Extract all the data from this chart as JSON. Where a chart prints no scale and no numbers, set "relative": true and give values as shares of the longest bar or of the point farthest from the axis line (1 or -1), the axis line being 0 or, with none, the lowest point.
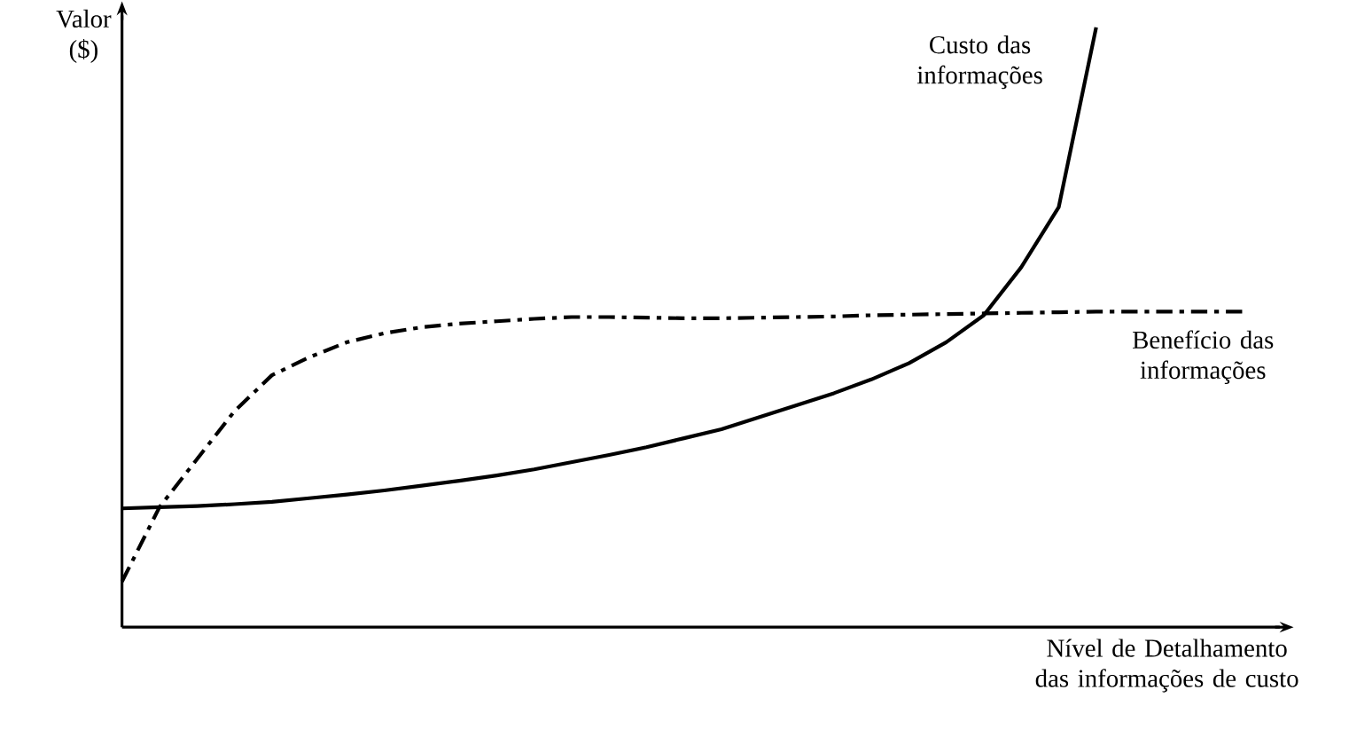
{
  "chart_data": {
    "type": "line",
    "relative": true,
    "marker": "none",
    "xlabel": "Nível de Detalhamento das informações de custo",
    "ylabel": "Valor ($)",
    "categories": [
      null,
      null,
      null,
      null,
      null,
      null,
      null,
      null,
      null,
      null,
      null,
      null,
      null,
      null,
      null,
      null,
      null,
      null,
      null,
      null,
      null,
      null,
      null,
      null,
      null,
      null,
      null,
      null,
      null,
      null,
      null
    ],
    "series": [
      {
        "name": "Custo das informações",
        "color": "#000000",
        "line_style": "solid",
        "values": [
          0.198,
          0.2,
          0.202,
          0.205,
          0.209,
          0.215,
          0.221,
          0.228,
          0.236,
          0.244,
          0.253,
          0.263,
          0.275,
          0.287,
          0.3,
          0.315,
          0.33,
          0.35,
          0.37,
          0.39,
          0.413,
          0.44,
          0.475,
          0.52,
          0.6,
          0.7,
          1.0,
          null,
          null,
          null,
          null
        ]
      },
      {
        "name": "Benefício das informações",
        "color": "#000000",
        "line_style": "dashdot",
        "values": [
          0.076,
          0.2,
          0.28,
          0.36,
          0.42,
          0.45,
          0.475,
          0.49,
          0.5,
          0.506,
          0.51,
          0.514,
          0.517,
          0.517,
          0.516,
          0.515,
          0.515,
          0.516,
          0.517,
          0.518,
          0.52,
          0.521,
          0.522,
          0.523,
          0.524,
          0.525,
          0.526,
          0.526,
          0.526,
          0.526,
          0.526
        ]
      }
    ]
  }
}
